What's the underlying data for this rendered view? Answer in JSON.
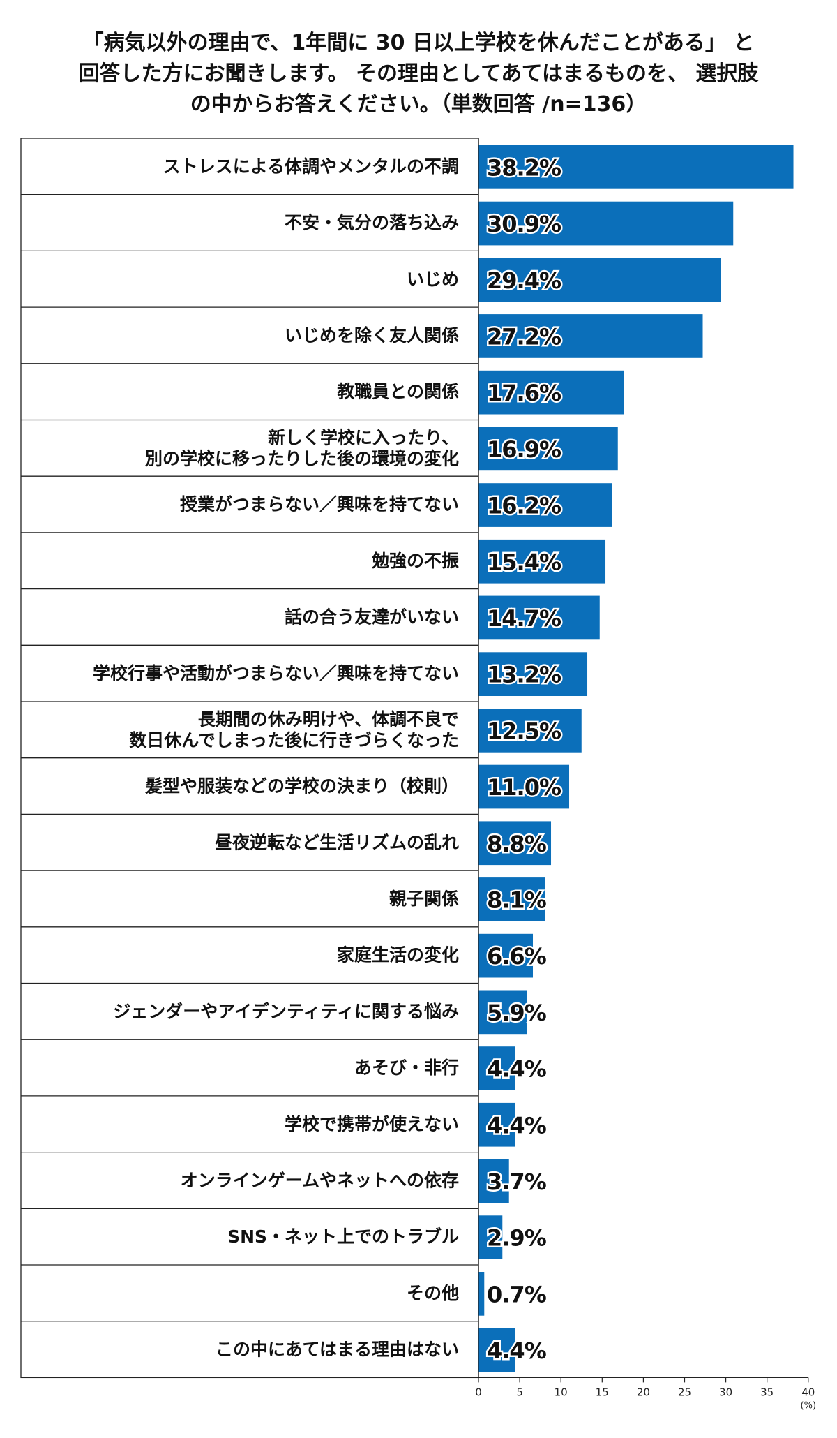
{
  "chart_data": {
    "type": "bar",
    "orientation": "horizontal",
    "title_lines": [
      "「病気以外の理由で、1年間に 30 日以上学校を休んだことがある」 と",
      "回答した方にお聞きします。 その理由としてあてはまるものを、 選択肢",
      "の中からお答えください。（単数回答 /n=136）"
    ],
    "categories": [
      [
        "ストレスによる体調やメンタルの不調"
      ],
      [
        "不安・気分の落ち込み"
      ],
      [
        "いじめ"
      ],
      [
        "いじめを除く友人関係"
      ],
      [
        "教職員との関係"
      ],
      [
        "新しく学校に入ったり、",
        "別の学校に移ったりした後の環境の変化"
      ],
      [
        "授業がつまらない／興味を持てない"
      ],
      [
        "勉強の不振"
      ],
      [
        "話の合う友達がいない"
      ],
      [
        "学校行事や活動がつまらない／興味を持てない"
      ],
      [
        "長期間の休み明けや、体調不良で",
        "数日休んでしまった後に行きづらくなった"
      ],
      [
        "髪型や服装などの学校の決まり（校則）"
      ],
      [
        "昼夜逆転など生活リズムの乱れ"
      ],
      [
        "親子関係"
      ],
      [
        "家庭生活の変化"
      ],
      [
        "ジェンダーやアイデンティティに関する悩み"
      ],
      [
        "あそび・非行"
      ],
      [
        "学校で携帯が使えない"
      ],
      [
        "オンラインゲームやネットへの依存"
      ],
      [
        "SNS・ネット上でのトラブル"
      ],
      [
        "その他"
      ],
      [
        "この中にあてはまる理由はない"
      ]
    ],
    "values": [
      38.2,
      30.9,
      29.4,
      27.2,
      17.6,
      16.9,
      16.2,
      15.4,
      14.7,
      13.2,
      12.5,
      11.0,
      8.8,
      8.1,
      6.6,
      5.9,
      4.4,
      4.4,
      3.7,
      2.9,
      0.7,
      4.4
    ],
    "value_labels": [
      "38.2%",
      "30.9%",
      "29.4%",
      "27.2%",
      "17.6%",
      "16.9%",
      "16.2%",
      "15.4%",
      "14.7%",
      "13.2%",
      "12.5%",
      "11.0%",
      "8.8%",
      "8.1%",
      "6.6%",
      "5.9%",
      "4.4%",
      "4.4%",
      "3.7%",
      "2.9%",
      "0.7%",
      "4.4%"
    ],
    "xlim": [
      0,
      40
    ],
    "xticks": [
      0,
      5,
      10,
      15,
      20,
      25,
      30,
      35,
      40
    ],
    "xtick_labels": [
      "0",
      "5",
      "10",
      "15",
      "20",
      "25",
      "30",
      "35",
      "40"
    ],
    "x_unit": "(%)",
    "bar_color": "#0b6fba",
    "grid": false,
    "legend": "none"
  }
}
